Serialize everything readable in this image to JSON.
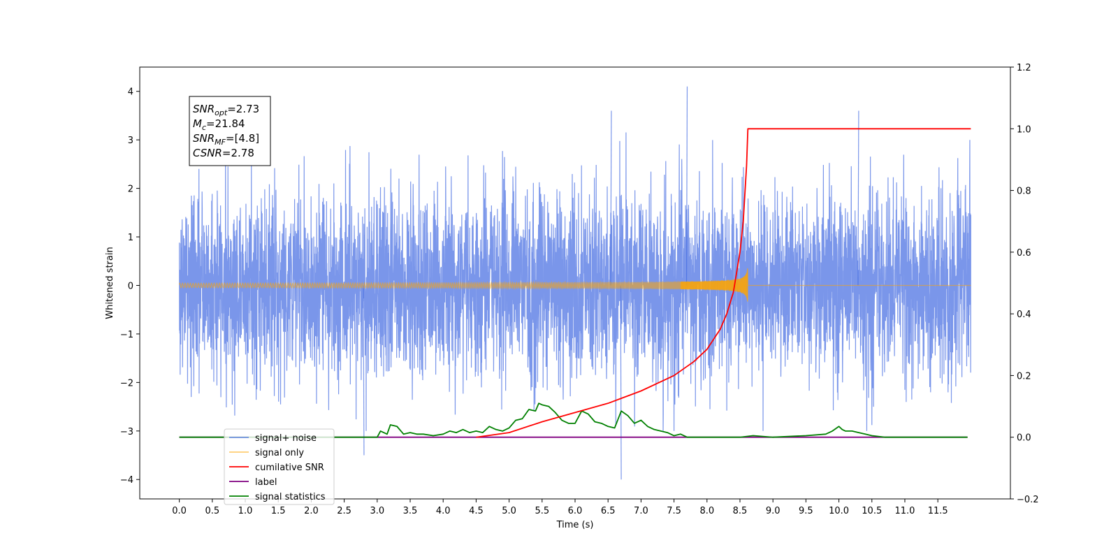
{
  "chart_data": {
    "type": "line",
    "xlabel": "Time (s)",
    "ylabel": "Whitened strain",
    "xlim": [
      -0.6,
      12.6
    ],
    "ylim": [
      -4.4,
      4.5
    ],
    "y2lim": [
      -0.2,
      1.2
    ],
    "x_ticks": [
      "0.0",
      "0.5",
      "1.0",
      "1.5",
      "2.0",
      "2.5",
      "3.0",
      "3.5",
      "4.0",
      "4.5",
      "5.0",
      "5.5",
      "6.0",
      "6.5",
      "7.0",
      "7.5",
      "8.0",
      "8.5",
      "9.0",
      "9.5",
      "10.0",
      "10.5",
      "11.0",
      "11.5"
    ],
    "y_ticks": [
      "−4",
      "−3",
      "−2",
      "−1",
      "0",
      "1",
      "2",
      "3",
      "4"
    ],
    "y2_ticks": [
      "−0.2",
      "0.0",
      "0.2",
      "0.4",
      "0.6",
      "0.8",
      "1.0",
      "1.2"
    ],
    "grid": false,
    "legend_position": "lower-left",
    "annotation": {
      "lines": [
        {
          "var": "SNR",
          "sub": "opt",
          "value": "=2.73"
        },
        {
          "var": "M",
          "sub": "c",
          "value": "=21.84"
        },
        {
          "var": "SNR",
          "sub": "MF",
          "value": "=[4.8]"
        },
        {
          "var": "CSNR",
          "sub": "",
          "value": "=2.78"
        }
      ]
    },
    "series": [
      {
        "name": "signal+ noise",
        "axis": "left",
        "color": "#4169e1",
        "opacity": 0.7,
        "description": "whitened noise, std about 0.95, spans 0.0 to 12.0 s",
        "approx_range": [
          -4.0,
          4.1
        ],
        "notable_peaks": [
          {
            "x": 7.7,
            "y": 4.1
          },
          {
            "x": 6.55,
            "y": 3.6
          },
          {
            "x": 10.3,
            "y": 3.6
          },
          {
            "x": 6.7,
            "y": -4.0
          },
          {
            "x": 2.8,
            "y": -3.5
          }
        ]
      },
      {
        "name": "signal only",
        "axis": "left",
        "color": "#ffa500",
        "opacity": 0.55,
        "merger_time": 8.62,
        "peak_amplitude": 0.55
      },
      {
        "name": "cumilative SNR",
        "axis": "right",
        "color": "#ff0000",
        "x": [
          4.5,
          5.0,
          5.5,
          6.0,
          6.5,
          7.0,
          7.5,
          7.8,
          8.0,
          8.2,
          8.3,
          8.4,
          8.5,
          8.55,
          8.6,
          8.62,
          12.0
        ],
        "y": [
          0.0,
          0.015,
          0.05,
          0.08,
          0.11,
          0.15,
          0.2,
          0.245,
          0.285,
          0.35,
          0.4,
          0.47,
          0.6,
          0.7,
          0.88,
          1.0,
          1.0
        ]
      },
      {
        "name": "label",
        "axis": "right",
        "color": "#800080",
        "x": [
          0.0,
          11.95
        ],
        "y": [
          0.0,
          0.0
        ]
      },
      {
        "name": "signal statistics",
        "axis": "right",
        "color": "#008000",
        "x": [
          0.0,
          3.0,
          3.05,
          3.15,
          3.2,
          3.3,
          3.4,
          3.5,
          3.6,
          3.7,
          3.85,
          4.0,
          4.1,
          4.2,
          4.3,
          4.4,
          4.5,
          4.6,
          4.7,
          4.8,
          4.9,
          5.0,
          5.1,
          5.2,
          5.3,
          5.4,
          5.45,
          5.5,
          5.6,
          5.7,
          5.8,
          5.9,
          6.0,
          6.1,
          6.2,
          6.3,
          6.4,
          6.5,
          6.6,
          6.7,
          6.8,
          6.9,
          7.0,
          7.1,
          7.2,
          7.3,
          7.4,
          7.5,
          7.6,
          7.7,
          7.8,
          8.0,
          8.5,
          8.7,
          9.0,
          9.5,
          9.8,
          9.9,
          10.0,
          10.05,
          10.1,
          10.2,
          10.3,
          10.4,
          10.5,
          10.7,
          11.0,
          11.95
        ],
        "y": [
          0.0,
          0.0,
          0.02,
          0.01,
          0.04,
          0.035,
          0.01,
          0.015,
          0.01,
          0.01,
          0.005,
          0.01,
          0.02,
          0.015,
          0.025,
          0.015,
          0.02,
          0.015,
          0.035,
          0.025,
          0.02,
          0.03,
          0.055,
          0.06,
          0.09,
          0.085,
          0.11,
          0.105,
          0.1,
          0.08,
          0.055,
          0.045,
          0.045,
          0.085,
          0.075,
          0.05,
          0.045,
          0.035,
          0.03,
          0.085,
          0.07,
          0.045,
          0.055,
          0.035,
          0.025,
          0.02,
          0.015,
          0.005,
          0.01,
          0.0,
          0.0,
          0.0,
          0.0,
          0.005,
          0.0,
          0.005,
          0.01,
          0.02,
          0.035,
          0.025,
          0.02,
          0.02,
          0.015,
          0.01,
          0.005,
          0.0,
          0.0,
          0.0
        ]
      },
      {
        "name": "signal only",
        "axis": "right",
        "color": "#ffa500",
        "x": [
          0.0,
          11.95
        ],
        "y": [
          0.0,
          0.0
        ]
      }
    ]
  }
}
